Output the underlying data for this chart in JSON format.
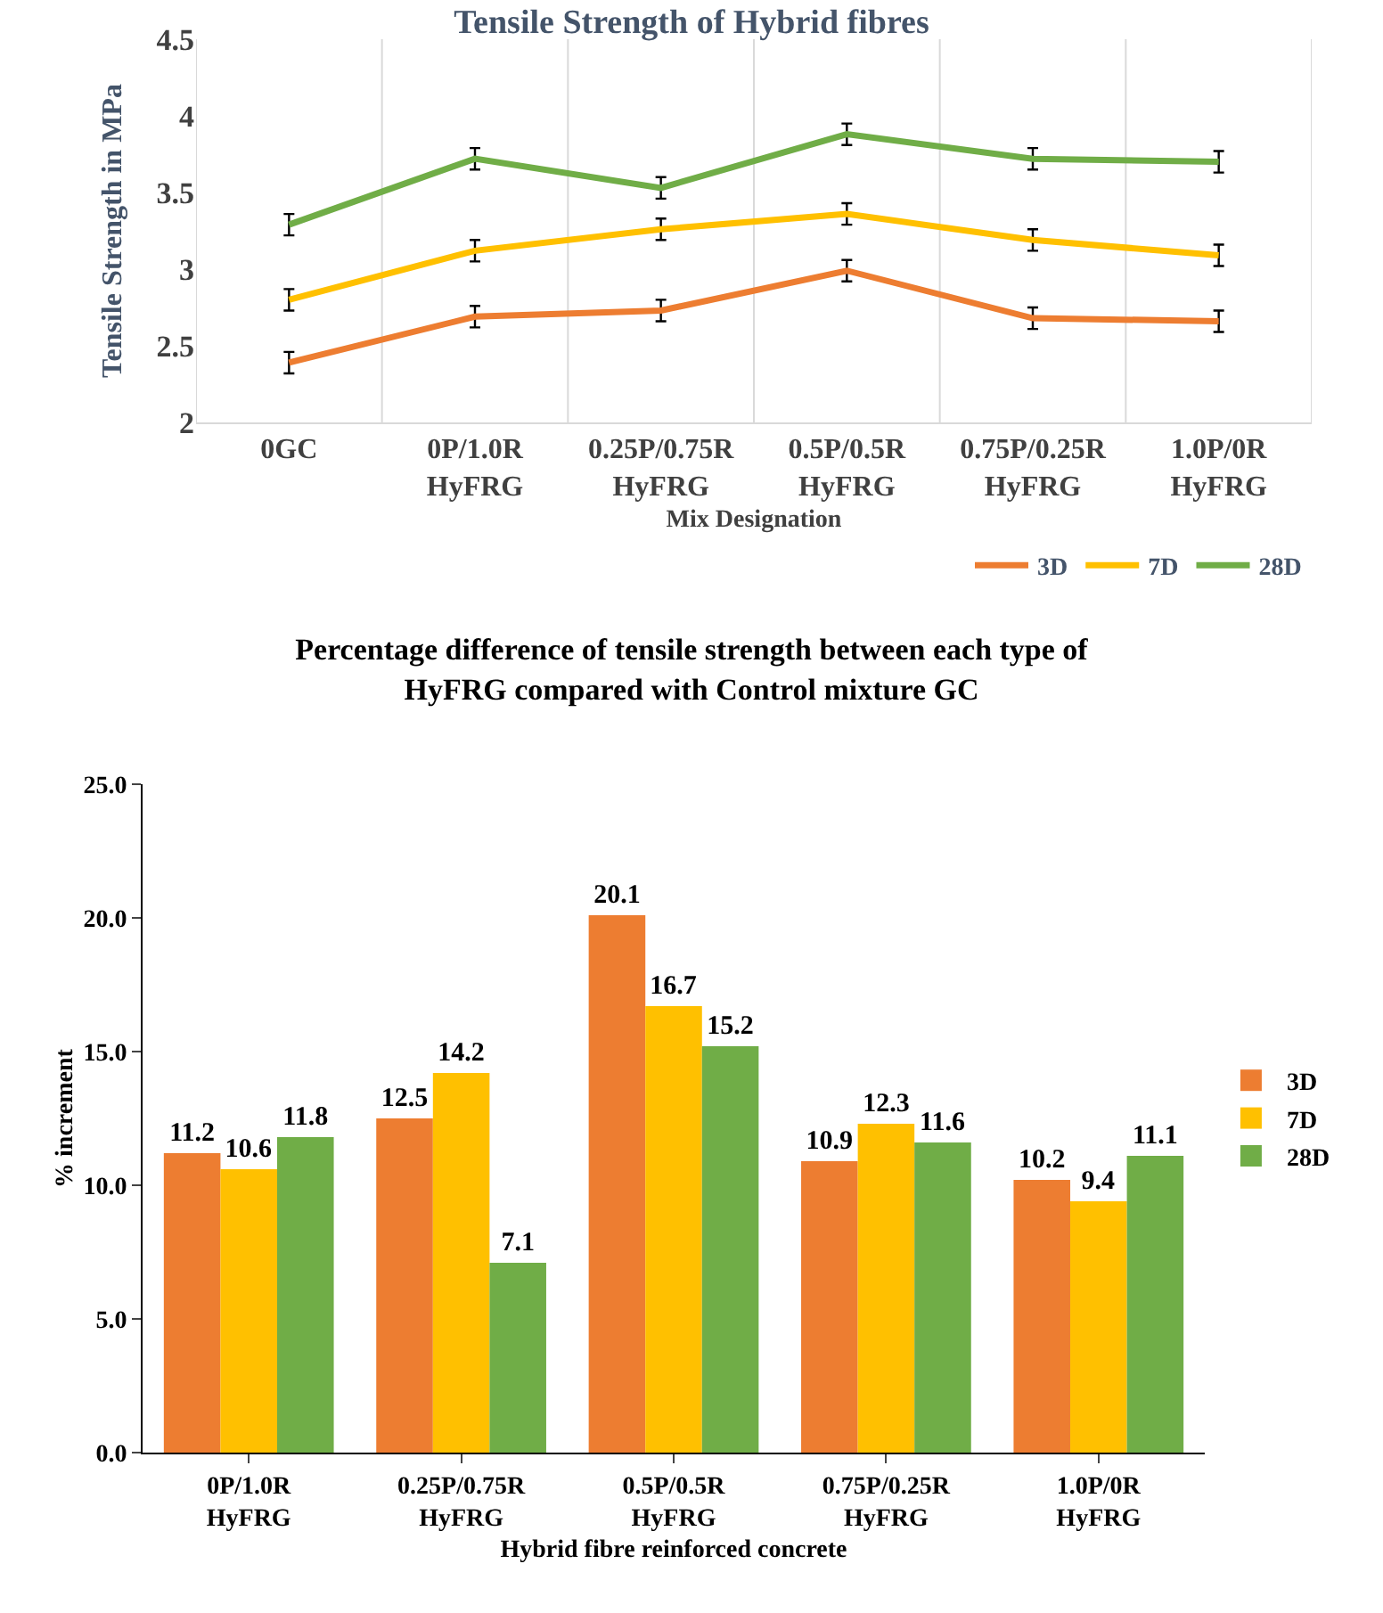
{
  "chart_data": [
    {
      "type": "line",
      "title": "Tensile Strength of Hybrid fibres",
      "xlabel": "Mix Designation",
      "ylabel": "Tensile Strength in MPa",
      "categories": [
        "0GC",
        "0P/1.0R HyFRG",
        "0.25P/0.75R HyFRG",
        "0.5P/0.5R HyFRG",
        "0.75P/0.25R HyFRG",
        "1.0P/0R HyFRG"
      ],
      "series": [
        {
          "name": "3D",
          "color": "#ed7d31",
          "values": [
            2.39,
            2.69,
            2.73,
            2.99,
            2.68,
            2.66
          ],
          "errors": [
            0.07,
            0.07,
            0.07,
            0.07,
            0.07,
            0.07
          ]
        },
        {
          "name": "7D",
          "color": "#ffc000",
          "values": [
            2.8,
            3.12,
            3.26,
            3.36,
            3.19,
            3.09
          ],
          "errors": [
            0.07,
            0.07,
            0.07,
            0.07,
            0.07,
            0.07
          ]
        },
        {
          "name": "28D",
          "color": "#70ad47",
          "values": [
            3.29,
            3.72,
            3.53,
            3.88,
            3.72,
            3.7
          ],
          "errors": [
            0.07,
            0.07,
            0.07,
            0.07,
            0.07,
            0.07
          ]
        }
      ],
      "ylim": [
        2,
        4.5
      ],
      "yticks": [
        2,
        2.5,
        3,
        3.5,
        4,
        4.5
      ],
      "grid": "x",
      "legend": "bottom right",
      "marker": "none",
      "line_style": "solid"
    },
    {
      "type": "bar",
      "title": "Percentage difference of tensile strength between each type of HyFRG compared with Control mixture GC",
      "xlabel": "Hybrid fibre reinforced concrete",
      "ylabel": "% increment",
      "categories": [
        "0P/1.0R HyFRG",
        "0.25P/0.75R HyFRG",
        "0.5P/0.5R HyFRG",
        "0.75P/0.25R HyFRG",
        "1.0P/0R HyFRG"
      ],
      "series": [
        {
          "name": "3D",
          "color": "#ed7d31",
          "values": [
            11.2,
            12.5,
            20.1,
            10.9,
            10.2
          ]
        },
        {
          "name": "7D",
          "color": "#ffc000",
          "values": [
            10.6,
            14.2,
            16.7,
            12.3,
            9.4
          ]
        },
        {
          "name": "28D",
          "color": "#70ad47",
          "values": [
            11.8,
            7.1,
            15.2,
            11.6,
            11.1
          ]
        }
      ],
      "ylim": [
        0,
        25
      ],
      "yticks": [
        {
          "value": 0,
          "label": "0.0"
        },
        {
          "value": 5,
          "label": "5.0"
        },
        {
          "value": 10,
          "label": "10.0"
        },
        {
          "value": 15,
          "label": "15.0"
        },
        {
          "value": 20,
          "label": "20.0"
        },
        {
          "value": 25,
          "label": "25.0"
        }
      ],
      "grid": false,
      "legend": "right",
      "data_labels": true
    }
  ]
}
